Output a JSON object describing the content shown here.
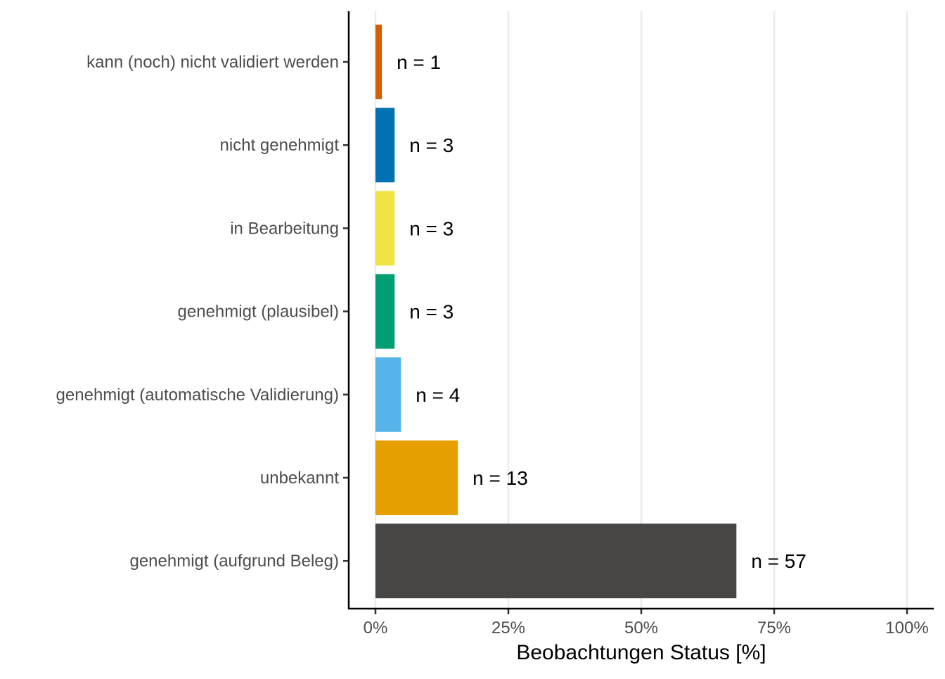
{
  "chart_data": {
    "type": "bar",
    "orientation": "horizontal",
    "categories": [
      "kann (noch) nicht validiert werden",
      "nicht genehmigt",
      "in Bearbeitung",
      "genehmigt (plausibel)",
      "genehmigt (automatische Validierung)",
      "unbekannt",
      "genehmigt (aufgrund Beleg)"
    ],
    "values": [
      1.2,
      3.6,
      3.6,
      3.6,
      4.8,
      15.5,
      67.9
    ],
    "data_labels": [
      "n = 1",
      "n = 3",
      "n = 3",
      "n = 3",
      "n = 4",
      "n = 13",
      "n = 57"
    ],
    "colors": [
      "#D55E00",
      "#0072B2",
      "#F0E442",
      "#009E73",
      "#56B4E9",
      "#E69F00",
      "#474645"
    ],
    "xlabel": "Beobachtungen Status [%]",
    "ylabel": "",
    "xlim": [
      0,
      100
    ],
    "x_ticks": [
      0,
      25,
      50,
      75,
      100
    ],
    "x_tick_labels": [
      "0%",
      "25%",
      "50%",
      "75%",
      "100%"
    ],
    "grid": "vertical major lines",
    "legend": "none"
  }
}
